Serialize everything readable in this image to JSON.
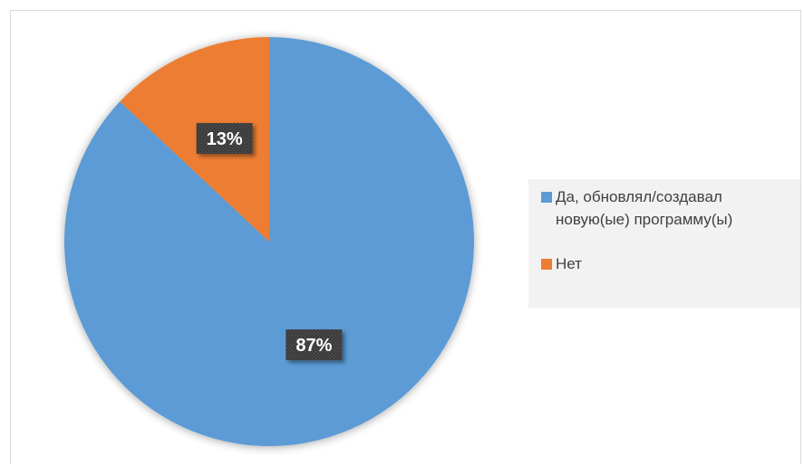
{
  "chart_data": {
    "type": "pie",
    "title": "",
    "categories": [
      "Да, обновлял/создавал новую(ые) программу(ы)",
      "Нет"
    ],
    "values": [
      87,
      13
    ],
    "data_labels": [
      "87%",
      "13%"
    ],
    "colors": [
      "#5b9bd5",
      "#ed7d31"
    ],
    "legend_position": "right"
  },
  "legend": {
    "items": [
      {
        "label": "Да, обновлял/создавал новую(ые) программу(ы)",
        "color": "#5b9bd5"
      },
      {
        "label": "Нет",
        "color": "#ed7d31"
      }
    ]
  }
}
